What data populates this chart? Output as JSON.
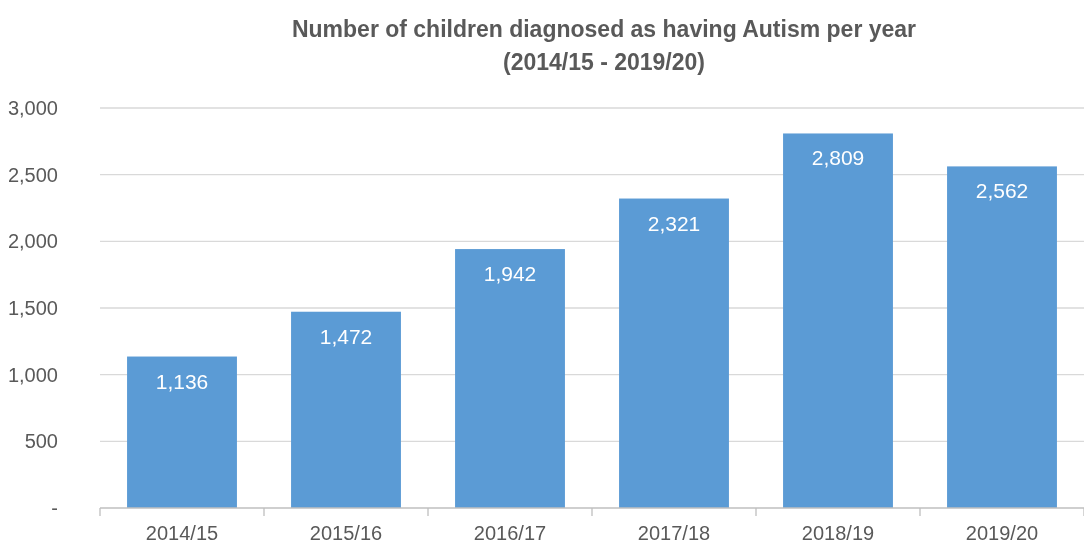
{
  "chart_data": {
    "type": "bar",
    "title": "Number of children diagnosed as having Autism per year",
    "subtitle": "(2014/15 - 2019/20)",
    "categories": [
      "2014/15",
      "2015/16",
      "2016/17",
      "2017/18",
      "2018/19",
      "2019/20"
    ],
    "values": [
      1136,
      1472,
      1942,
      2321,
      2809,
      2562
    ],
    "value_labels": [
      "1,136",
      "1,472",
      "1,942",
      "2,321",
      "2,809",
      "2,562"
    ],
    "color": "#5b9bd5",
    "ylim": [
      0,
      3000
    ],
    "yticks": [
      {
        "value": 0,
        "label": "-"
      },
      {
        "value": 500,
        "label": "500"
      },
      {
        "value": 1000,
        "label": "1,000"
      },
      {
        "value": 1500,
        "label": "1,500"
      },
      {
        "value": 2000,
        "label": "2,000"
      },
      {
        "value": 2500,
        "label": "2,500"
      },
      {
        "value": 3000,
        "label": "3,000"
      }
    ],
    "grid": "y"
  }
}
